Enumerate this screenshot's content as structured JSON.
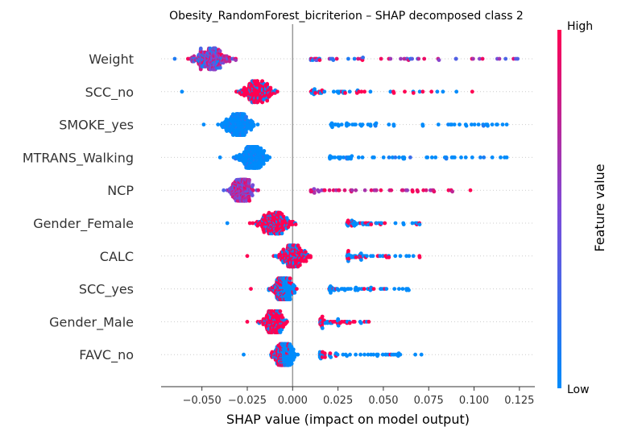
{
  "chart_data": {
    "type": "scatter",
    "subtype": "shap-beeswarm",
    "title": "Obesity_RandomForest_bicriterion – SHAP decomposed class 2",
    "xlabel": "SHAP value (impact on model output)",
    "xlim": [
      -0.0725,
      0.1335
    ],
    "xticks": [
      -0.05,
      -0.025,
      0.0,
      0.025,
      0.05,
      0.075,
      0.1,
      0.125
    ],
    "xtick_labels": [
      "−0.050",
      "−0.025",
      "0.000",
      "0.025",
      "0.050",
      "0.075",
      "0.100",
      "0.125"
    ],
    "colorbar": {
      "label": "Feature value",
      "high": "High",
      "low": "Low",
      "high_color": "#ff0052",
      "low_color": "#008bfb"
    },
    "features": [
      {
        "name": "Weight",
        "min": -0.065,
        "max": 0.124,
        "mode": -0.045,
        "core": [
          -0.06,
          0.0
        ],
        "tail_start": 0.01,
        "color": "mixed-purple"
      },
      {
        "name": "SCC_no",
        "min": -0.061,
        "max": 0.099,
        "mode": -0.02,
        "core": [
          -0.055,
          0.0
        ],
        "tail_start": 0.01,
        "color": "high-left"
      },
      {
        "name": "SMOKE_yes",
        "min": -0.049,
        "max": 0.118,
        "mode": -0.03,
        "core": [
          -0.045,
          0.005
        ],
        "tail_start": 0.02,
        "color": "low"
      },
      {
        "name": "MTRANS_Walking",
        "min": -0.04,
        "max": 0.118,
        "mode": -0.022,
        "core": [
          -0.04,
          0.005
        ],
        "tail_start": 0.02,
        "color": "low"
      },
      {
        "name": "NCP",
        "min": -0.038,
        "max": 0.098,
        "mode": -0.028,
        "core": [
          -0.038,
          0.0
        ],
        "tail_start": 0.01,
        "color": "high-right"
      },
      {
        "name": "Gender_Female",
        "min": -0.036,
        "max": 0.07,
        "mode": -0.01,
        "core": [
          -0.035,
          0.02
        ],
        "tail_start": 0.03,
        "color": "high-center"
      },
      {
        "name": "CALC",
        "min": -0.025,
        "max": 0.07,
        "mode": 0.0,
        "core": [
          -0.025,
          0.02
        ],
        "tail_start": 0.03,
        "color": "high-center"
      },
      {
        "name": "SCC_yes",
        "min": -0.023,
        "max": 0.064,
        "mode": -0.005,
        "core": [
          -0.022,
          0.015
        ],
        "tail_start": 0.02,
        "color": "low-left"
      },
      {
        "name": "Gender_Male",
        "min": -0.025,
        "max": 0.042,
        "mode": -0.01,
        "core": [
          -0.025,
          0.01
        ],
        "tail_start": 0.015,
        "color": "high-left"
      },
      {
        "name": "FAVC_no",
        "min": -0.027,
        "max": 0.071,
        "mode": -0.005,
        "core": [
          -0.025,
          0.01
        ],
        "tail_start": 0.015,
        "color": "low-left"
      }
    ]
  }
}
